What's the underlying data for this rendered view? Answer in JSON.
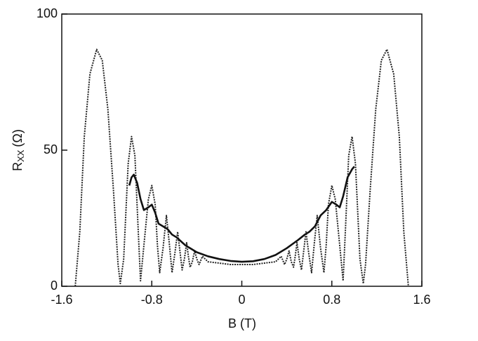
{
  "chart_data": {
    "type": "line",
    "x_label": "B (T)",
    "y_label_main": "R",
    "y_label_sub": "XX",
    "y_label_unit": "(Ω)",
    "xlim": [
      -1.6,
      1.6
    ],
    "xticks": [
      -1.6,
      -0.8,
      0,
      0.8,
      1.6
    ],
    "ylim": [
      0,
      100
    ],
    "yticks": [
      0,
      50,
      100
    ],
    "series": [
      {
        "color": "#222222",
        "style": "dotted",
        "x": [
          -1.48,
          -1.44,
          -1.4,
          -1.35,
          -1.29,
          -1.24,
          -1.19,
          -1.14,
          -1.1,
          -1.08,
          -1.05,
          -1.01,
          -0.98,
          -0.95,
          -0.92,
          -0.9,
          -0.87,
          -0.83,
          -0.8,
          -0.77,
          -0.75,
          -0.73,
          -0.7,
          -0.67,
          -0.645,
          -0.62,
          -0.595,
          -0.57,
          -0.55,
          -0.53,
          -0.51,
          -0.49,
          -0.475,
          -0.46,
          -0.44,
          -0.42,
          -0.4,
          -0.38,
          -0.35,
          -0.3,
          -0.2,
          -0.1,
          0,
          0.1,
          0.2,
          0.3,
          0.35,
          0.38,
          0.4,
          0.42,
          0.44,
          0.46,
          0.475,
          0.49,
          0.51,
          0.53,
          0.55,
          0.57,
          0.595,
          0.62,
          0.645,
          0.67,
          0.7,
          0.73,
          0.75,
          0.77,
          0.8,
          0.83,
          0.87,
          0.9,
          0.92,
          0.95,
          0.98,
          1.01,
          1.05,
          1.08,
          1.1,
          1.14,
          1.19,
          1.24,
          1.29,
          1.35,
          1.4,
          1.44,
          1.48
        ],
        "values": [
          0,
          20,
          55,
          78,
          87,
          83,
          65,
          35,
          8,
          1,
          10,
          45,
          55,
          48,
          20,
          2,
          15,
          32,
          37,
          30,
          15,
          5,
          14,
          26,
          16,
          5,
          12,
          20,
          13,
          6,
          10,
          16,
          11,
          7,
          9,
          13,
          10,
          8,
          11,
          9,
          8.5,
          8,
          8,
          8,
          8.5,
          9,
          11,
          8,
          10,
          13,
          9,
          7,
          11,
          16,
          10,
          6,
          13,
          20,
          12,
          5,
          16,
          26,
          14,
          5,
          15,
          30,
          37,
          32,
          15,
          2,
          20,
          48,
          55,
          45,
          10,
          1,
          8,
          35,
          65,
          83,
          87,
          78,
          55,
          20,
          0
        ]
      },
      {
        "color": "#111111",
        "style": "solid",
        "x": [
          -1.0,
          -0.98,
          -0.96,
          -0.93,
          -0.9,
          -0.87,
          -0.83,
          -0.8,
          -0.77,
          -0.74,
          -0.7,
          -0.66,
          -0.62,
          -0.58,
          -0.54,
          -0.5,
          -0.4,
          -0.3,
          -0.2,
          -0.1,
          0,
          0.1,
          0.2,
          0.3,
          0.4,
          0.5,
          0.56,
          0.6,
          0.65,
          0.7,
          0.75,
          0.8,
          0.84,
          0.87,
          0.9,
          0.94,
          0.98,
          1.0
        ],
        "values": [
          37,
          40,
          41,
          38,
          32,
          28,
          29,
          30,
          27,
          23,
          22,
          21,
          19,
          18,
          16.5,
          15,
          12.5,
          11,
          10,
          9.3,
          9,
          9.2,
          10,
          11.5,
          14,
          17,
          19,
          20,
          22,
          26,
          28,
          31,
          30,
          29,
          33,
          40,
          43,
          44
        ]
      }
    ]
  }
}
